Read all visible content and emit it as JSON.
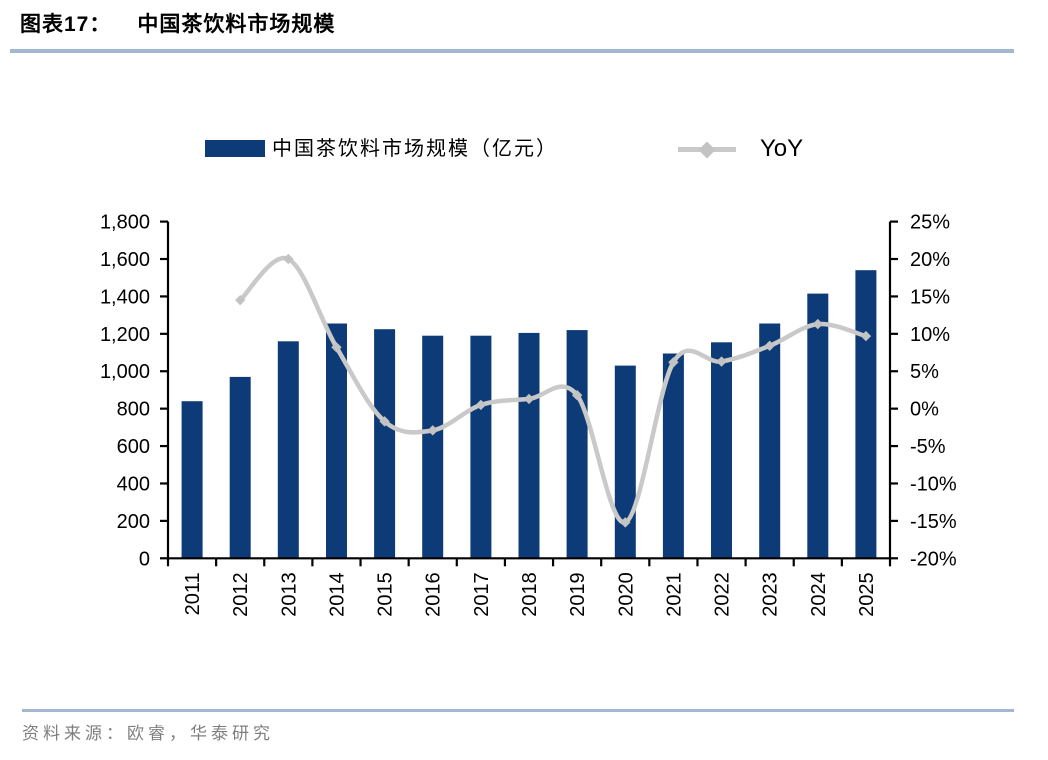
{
  "figure": {
    "label": "图表17：",
    "title": "中国茶饮料市场规模",
    "source": "资料来源：欧睿，华泰研究"
  },
  "legend": {
    "bar_label": "中国茶饮料市场规模（亿元）",
    "line_label": "YoY"
  },
  "colors": {
    "bar": "#0d3b78",
    "line": "#c9c9c9",
    "marker": "#c3c3c3",
    "axis": "#000000",
    "rule": "#a3b7d1",
    "source_text": "#7f7f7f"
  },
  "chart_data": {
    "type": "bar",
    "title": "中国茶饮料市场规模",
    "categories": [
      "2011",
      "2012",
      "2013",
      "2014",
      "2015",
      "2016",
      "2017",
      "2018",
      "2019",
      "2020",
      "2021",
      "2022",
      "2023",
      "2024",
      "2025"
    ],
    "series": [
      {
        "name": "中国茶饮料市场规模（亿元）",
        "type": "bar",
        "axis": "left",
        "values": [
          840,
          970,
          1160,
          1255,
          1225,
          1190,
          1190,
          1205,
          1220,
          1030,
          1095,
          1155,
          1255,
          1415,
          1540
        ]
      },
      {
        "name": "YoY",
        "type": "line",
        "axis": "right",
        "values": [
          null,
          14.5,
          20.0,
          8.2,
          -1.7,
          -2.9,
          0.5,
          1.3,
          1.8,
          -15.2,
          6.2,
          6.3,
          8.4,
          11.3,
          9.7
        ]
      }
    ],
    "left_axis": {
      "min": 0,
      "max": 1800,
      "step": 200,
      "labels": [
        "0",
        "200",
        "400",
        "600",
        "800",
        "1,000",
        "1,200",
        "1,400",
        "1,600",
        "1,800"
      ]
    },
    "right_axis": {
      "min": -20,
      "max": 25,
      "step": 5,
      "labels": [
        "-20%",
        "-15%",
        "-10%",
        "-5%",
        "0%",
        "5%",
        "10%",
        "15%",
        "20%",
        "25%"
      ]
    },
    "grid": false,
    "legend_position": "top"
  }
}
